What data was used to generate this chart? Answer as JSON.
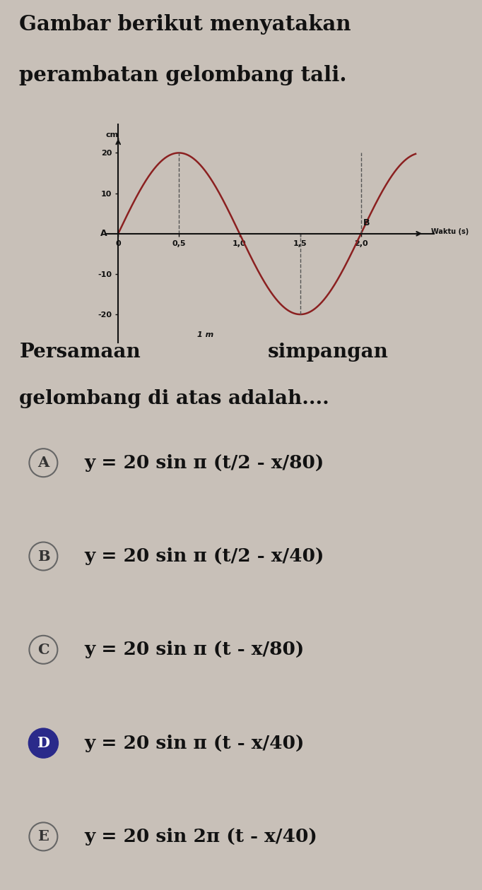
{
  "title_line1": "Gambar berikut menyatakan",
  "title_line2": "perambatan gelombang tali.",
  "bg_color": "#c8c0b8",
  "wave_color": "#8b2020",
  "axis_color": "#111111",
  "ylabel": "cm",
  "xlabel": "Waktu (s)",
  "yticks": [
    20,
    10,
    -10,
    -20
  ],
  "xticks": [
    0.0,
    0.5,
    1.0,
    1.5,
    2.0
  ],
  "xlabels": [
    "0",
    "0,5",
    "1,0",
    "1,5",
    "2,0"
  ],
  "y_label_A": "A",
  "y_label_B": "B",
  "label_1m": "1 m",
  "amplitude": 20,
  "question_line1a": "Persamaan",
  "question_line1b": "simpangan",
  "question_line2": "gelombang di atas adalah....",
  "options": [
    {
      "label": "A",
      "text": "y = 20 sin π (t/2 - x/80)",
      "selected": false
    },
    {
      "label": "B",
      "text": "y = 20 sin π (t/2 - x/40)",
      "selected": false
    },
    {
      "label": "C",
      "text": "y = 20 sin π (t - x/80)",
      "selected": false
    },
    {
      "label": "D",
      "text": "y = 20 sin π (t - x/40)",
      "selected": true
    },
    {
      "label": "E",
      "text": "y = 20 sin 2π (t - x/40)",
      "selected": false
    }
  ],
  "selected_fill": "#2a2a8a",
  "unselected_fill": "#c8c0b8",
  "selected_edge": "#2a2a8a",
  "unselected_edge": "#666666",
  "selected_text": "#ffffff",
  "unselected_text": "#333333"
}
